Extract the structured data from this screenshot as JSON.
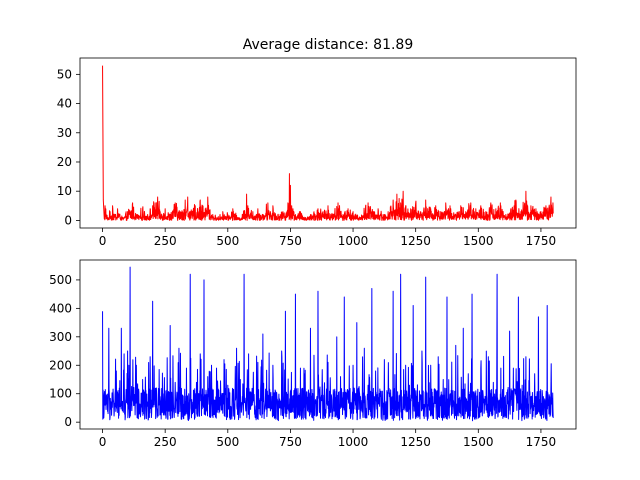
{
  "figure": {
    "title": "Average distance: 81.89"
  },
  "chart_data": [
    {
      "type": "line",
      "title": "Average distance: 81.89",
      "xlabel": "",
      "ylabel": "",
      "xlim": [
        -90,
        1890
      ],
      "ylim": [
        -2.6,
        55.6
      ],
      "xticks": [
        0,
        250,
        500,
        750,
        1000,
        1250,
        1500,
        1750
      ],
      "yticks": [
        0,
        10,
        20,
        30,
        40,
        50
      ],
      "color": "#ff0000",
      "grid": false,
      "n_points": 1800,
      "x_step": 1,
      "series": [
        {
          "name": "",
          "x": [
            0,
            3,
            6,
            10,
            20,
            30,
            40,
            50,
            60,
            80,
            100,
            120,
            140,
            160,
            180,
            200,
            210,
            220,
            230,
            250,
            270,
            290,
            310,
            330,
            340,
            350,
            370,
            390,
            410,
            420,
            440,
            460,
            480,
            500,
            520,
            540,
            560,
            575,
            580,
            600,
            620,
            640,
            660,
            670,
            680,
            700,
            720,
            740,
            746,
            750,
            755,
            760,
            770,
            790,
            810,
            830,
            860,
            880,
            900,
            920,
            940,
            960,
            980,
            1000,
            1030,
            1050,
            1060,
            1080,
            1100,
            1120,
            1140,
            1160,
            1175,
            1190,
            1200,
            1210,
            1230,
            1250,
            1270,
            1290,
            1310,
            1330,
            1350,
            1370,
            1390,
            1410,
            1430,
            1450,
            1470,
            1490,
            1510,
            1530,
            1550,
            1570,
            1590,
            1610,
            1630,
            1650,
            1670,
            1690,
            1710,
            1730,
            1750,
            1770,
            1790,
            1800
          ],
          "y": [
            53,
            7,
            2,
            5,
            1,
            3,
            5,
            2,
            4,
            1,
            3,
            6,
            2,
            4,
            2,
            5,
            6,
            8,
            3,
            4,
            2,
            6,
            3,
            7,
            8,
            3,
            5,
            7,
            4,
            8,
            2,
            1,
            3,
            2,
            4,
            1,
            2,
            9,
            5,
            3,
            4,
            2,
            6,
            3,
            5,
            2,
            3,
            6,
            16,
            12,
            5,
            4,
            2,
            3,
            1,
            2,
            4,
            3,
            5,
            2,
            6,
            2,
            4,
            3,
            1,
            5,
            6,
            3,
            4,
            2,
            3,
            7,
            9,
            6,
            10,
            5,
            4,
            6,
            3,
            7,
            4,
            5,
            3,
            6,
            4,
            2,
            5,
            3,
            6,
            4,
            5,
            3,
            6,
            4,
            5,
            2,
            4,
            7,
            3,
            10,
            5,
            4,
            3,
            5,
            8,
            10
          ]
        }
      ]
    },
    {
      "type": "line",
      "title": "",
      "xlabel": "",
      "ylabel": "",
      "xlim": [
        -90,
        1890
      ],
      "ylim": [
        -24,
        570
      ],
      "xticks": [
        0,
        250,
        500,
        750,
        1000,
        1250,
        1500,
        1750
      ],
      "yticks": [
        0,
        100,
        200,
        300,
        400,
        500
      ],
      "color": "#0000ff",
      "grid": false,
      "n_points": 1800,
      "x_step": 1,
      "series": [
        {
          "name": "",
          "x": [
            0,
            10,
            25,
            40,
            55,
            75,
            85,
            100,
            110,
            120,
            135,
            150,
            160,
            170,
            190,
            200,
            215,
            230,
            250,
            270,
            290,
            305,
            320,
            335,
            350,
            360,
            375,
            390,
            405,
            420,
            440,
            455,
            470,
            485,
            500,
            520,
            535,
            550,
            565,
            580,
            600,
            620,
            640,
            660,
            680,
            700,
            715,
            730,
            750,
            770,
            790,
            810,
            830,
            845,
            860,
            880,
            900,
            920,
            935,
            950,
            965,
            980,
            1000,
            1015,
            1030,
            1045,
            1060,
            1075,
            1090,
            1110,
            1125,
            1140,
            1160,
            1175,
            1190,
            1210,
            1225,
            1240,
            1260,
            1275,
            1290,
            1310,
            1325,
            1340,
            1360,
            1375,
            1390,
            1410,
            1425,
            1440,
            1460,
            1475,
            1490,
            1510,
            1525,
            1540,
            1560,
            1575,
            1590,
            1610,
            1625,
            1640,
            1660,
            1675,
            1690,
            1710,
            1725,
            1740,
            1760,
            1775,
            1790,
            1800
          ],
          "y": [
            390,
            60,
            330,
            80,
            180,
            330,
            120,
            250,
            545,
            90,
            200,
            60,
            150,
            70,
            230,
            425,
            120,
            90,
            110,
            340,
            140,
            260,
            90,
            190,
            520,
            60,
            140,
            240,
            500,
            160,
            90,
            190,
            60,
            220,
            130,
            80,
            260,
            150,
            520,
            110,
            70,
            210,
            310,
            95,
            200,
            75,
            250,
            390,
            110,
            450,
            190,
            70,
            330,
            140,
            460,
            95,
            210,
            60,
            300,
            160,
            440,
            80,
            200,
            350,
            90,
            260,
            130,
            470,
            180,
            90,
            220,
            100,
            460,
            80,
            520,
            200,
            130,
            410,
            70,
            250,
            510,
            200,
            70,
            230,
            150,
            440,
            100,
            270,
            60,
            330,
            170,
            450,
            110,
            190,
            80,
            230,
            140,
            520,
            190,
            60,
            320,
            190,
            440,
            130,
            230,
            90,
            170,
            370,
            90,
            410,
            130,
            60
          ]
        }
      ]
    }
  ]
}
